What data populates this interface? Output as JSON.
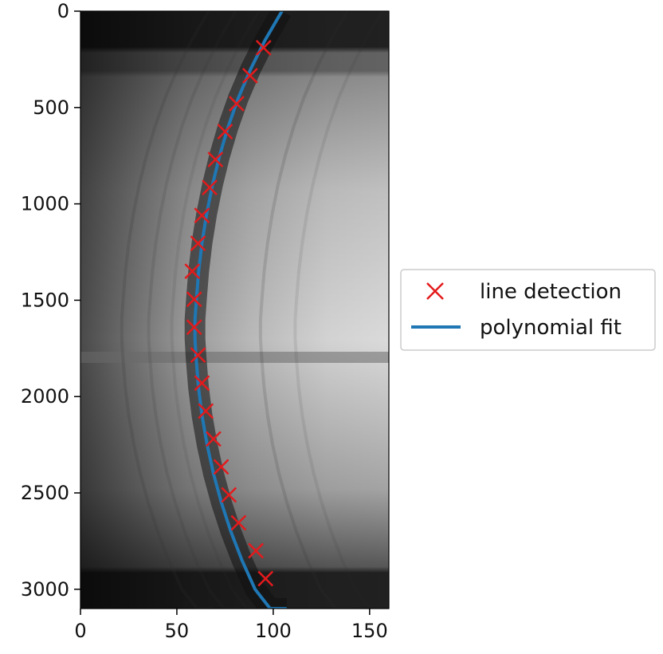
{
  "chart_data": {
    "type": "scatter",
    "title": "",
    "xlabel": "",
    "ylabel": "",
    "xlim": [
      0,
      160
    ],
    "ylim": [
      3100,
      0
    ],
    "y_inverted": true,
    "grid": false,
    "x_ticks": [
      0,
      50,
      100,
      150
    ],
    "y_ticks": [
      0,
      500,
      1000,
      1500,
      2000,
      2500,
      3000
    ],
    "legend_position": "outside-right",
    "background": "grayscale spectral image with dark horizontal bands near top and bottom and faint curved emission arcs",
    "series": [
      {
        "name": "line detection",
        "kind": "marker",
        "marker": "x",
        "color": "#e41a1c",
        "x": [
          95,
          88,
          81,
          75,
          70,
          67,
          63,
          61,
          58,
          59,
          59,
          61,
          63,
          65,
          69,
          73,
          77,
          82,
          91,
          96
        ],
        "y": [
          190,
          335,
          480,
          625,
          770,
          915,
          1060,
          1205,
          1350,
          1495,
          1640,
          1785,
          1930,
          2075,
          2220,
          2365,
          2510,
          2655,
          2800,
          2945
        ]
      },
      {
        "name": "polynomial fit",
        "kind": "line",
        "color": "#1f77b4",
        "x": [
          104.5,
          95.8,
          88.3,
          81.9,
          76.6,
          72.2,
          68.5,
          65.5,
          63.1,
          61.3,
          60.1,
          59.4,
          59.4,
          60.0,
          61.2,
          63.1,
          65.7,
          69.0,
          73.1,
          78.0,
          83.8,
          90.6,
          98.4,
          107.0
        ],
        "y": [
          0,
          150,
          300,
          450,
          600,
          750,
          900,
          1050,
          1200,
          1350,
          1500,
          1600,
          1700,
          1800,
          1950,
          2100,
          2250,
          2400,
          2550,
          2700,
          2850,
          3000,
          3100,
          3100
        ]
      }
    ]
  }
}
